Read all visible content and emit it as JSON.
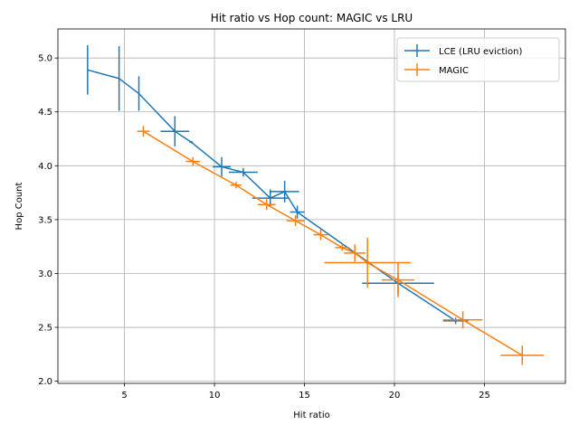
{
  "chart_data": {
    "type": "line",
    "title": "Hit ratio vs Hop count: MAGIC vs LRU",
    "xlabel": "Hit ratio",
    "ylabel": "Hop Count",
    "xlim": [
      1.3,
      29.5
    ],
    "ylim": [
      1.98,
      5.27
    ],
    "xticks": [
      5,
      10,
      15,
      20,
      25
    ],
    "yticks": [
      2.0,
      2.5,
      3.0,
      3.5,
      4.0,
      4.5,
      5.0
    ],
    "xtick_labels": [
      "5",
      "10",
      "15",
      "20",
      "25"
    ],
    "ytick_labels": [
      "2.0",
      "2.5",
      "3.0",
      "3.5",
      "4.0",
      "4.5",
      "5.0"
    ],
    "grid": true,
    "legend_position": "top-right",
    "series": [
      {
        "name": "LCE (LRU eviction)",
        "color": "#1f77b4",
        "points": [
          {
            "x": 2.95,
            "y": 4.89,
            "xerr": 0.0,
            "yerr": 0.23
          },
          {
            "x": 4.7,
            "y": 4.81,
            "xerr": 0.0,
            "yerr": 0.3
          },
          {
            "x": 5.8,
            "y": 4.67,
            "xerr": 0.0,
            "yerr": 0.16
          },
          {
            "x": 7.8,
            "y": 4.32,
            "xerr": 0.8,
            "yerr": 0.14
          },
          {
            "x": 8.7,
            "y": 4.22,
            "xerr": 0.1,
            "yerr": 0.01
          },
          {
            "x": 10.4,
            "y": 3.99,
            "xerr": 0.5,
            "yerr": 0.09
          },
          {
            "x": 11.6,
            "y": 3.94,
            "xerr": 0.8,
            "yerr": 0.04
          },
          {
            "x": 13.1,
            "y": 3.7,
            "xerr": 1.0,
            "yerr": 0.08
          },
          {
            "x": 13.9,
            "y": 3.76,
            "xerr": 0.8,
            "yerr": 0.1
          },
          {
            "x": 14.6,
            "y": 3.57,
            "xerr": 0.4,
            "yerr": 0.06
          },
          {
            "x": 20.2,
            "y": 2.91,
            "xerr": 2.0,
            "yerr": 0.1
          },
          {
            "x": 23.4,
            "y": 2.56,
            "xerr": 0.7,
            "yerr": 0.03
          }
        ]
      },
      {
        "name": "MAGIC",
        "color": "#ff7f0e",
        "points": [
          {
            "x": 6.05,
            "y": 4.32,
            "xerr": 0.35,
            "yerr": 0.05
          },
          {
            "x": 8.8,
            "y": 4.04,
            "xerr": 0.4,
            "yerr": 0.04
          },
          {
            "x": 11.2,
            "y": 3.82,
            "xerr": 0.3,
            "yerr": 0.03
          },
          {
            "x": 12.9,
            "y": 3.64,
            "xerr": 0.5,
            "yerr": 0.05
          },
          {
            "x": 14.5,
            "y": 3.49,
            "xerr": 0.5,
            "yerr": 0.05
          },
          {
            "x": 15.9,
            "y": 3.36,
            "xerr": 0.4,
            "yerr": 0.05
          },
          {
            "x": 17.1,
            "y": 3.24,
            "xerr": 0.4,
            "yerr": 0.03
          },
          {
            "x": 17.8,
            "y": 3.19,
            "xerr": 0.6,
            "yerr": 0.08
          },
          {
            "x": 18.5,
            "y": 3.1,
            "xerr": 2.4,
            "yerr": 0.23
          },
          {
            "x": 20.2,
            "y": 2.94,
            "xerr": 0.9,
            "yerr": 0.16
          },
          {
            "x": 23.8,
            "y": 2.57,
            "xerr": 1.1,
            "yerr": 0.08
          },
          {
            "x": 27.1,
            "y": 2.24,
            "xerr": 1.2,
            "yerr": 0.09
          }
        ]
      }
    ]
  }
}
